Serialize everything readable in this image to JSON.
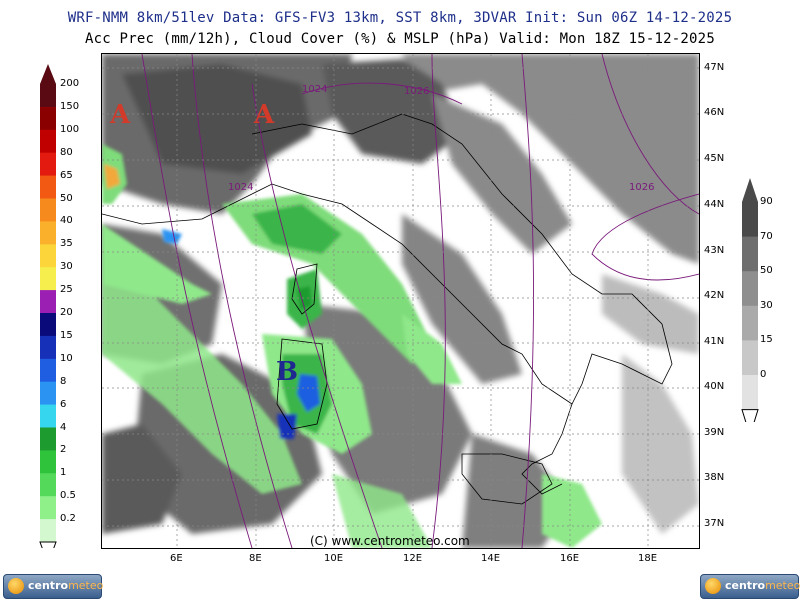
{
  "header": {
    "line1": "WRF-NMM 8km/51lev  Data: GFS-FV3 13km, SST 8km, 3DVAR  Init: Sun 06Z 14-12-2025",
    "line2": "Acc Prec (mm/12h), Cloud Cover (%) & MSLP (hPa)  Valid: Mon 18Z 15-12-2025"
  },
  "axes": {
    "lat_labels": [
      "47N",
      "46N",
      "45N",
      "44N",
      "43N",
      "42N",
      "41N",
      "40N",
      "39N",
      "38N",
      "37N"
    ],
    "lon_labels": [
      "6E",
      "8E",
      "10E",
      "12E",
      "14E",
      "16E",
      "18E"
    ]
  },
  "map": {
    "credit": "(C) www.centrometeo.com",
    "pressure_centers": [
      {
        "symbol": "A",
        "color": "#d23a2a"
      },
      {
        "symbol": "A",
        "color": "#d23a2a"
      },
      {
        "symbol": "B",
        "color": "#1e2890"
      }
    ],
    "isobar_labels": [
      "1024",
      "1026",
      "1024",
      "1026"
    ]
  },
  "precip_legend": {
    "labels": [
      "200",
      "150",
      "100",
      "80",
      "65",
      "50",
      "40",
      "35",
      "30",
      "25",
      "20",
      "15",
      "10",
      "8",
      "6",
      "4",
      "2",
      "1",
      "0.5",
      "0.2"
    ],
    "colors": [
      "#5a0a12",
      "#8a0000",
      "#c00000",
      "#e31a0f",
      "#f25a13",
      "#f78a1c",
      "#fbb02c",
      "#fbd53a",
      "#f6ee4c",
      "#9b1fb3",
      "#0a0a7a",
      "#1630b8",
      "#1f5ee0",
      "#2b93f2",
      "#36d6ef",
      "#1e9b2f",
      "#2fc23b",
      "#55d95a",
      "#8ff08a",
      "#d3f8cf"
    ]
  },
  "cloud_legend": {
    "labels": [
      "90",
      "70",
      "50",
      "30",
      "15",
      "0"
    ],
    "colors": [
      "#4a4a4a",
      "#6e6e6e",
      "#8e8e8e",
      "#aaaaaa",
      "#c8c8c8",
      "#e2e2e2"
    ]
  },
  "logos": {
    "left_prefix": "centro",
    "left_suffix": "meteo",
    "right_prefix": "centro",
    "right_suffix": "meteo"
  }
}
